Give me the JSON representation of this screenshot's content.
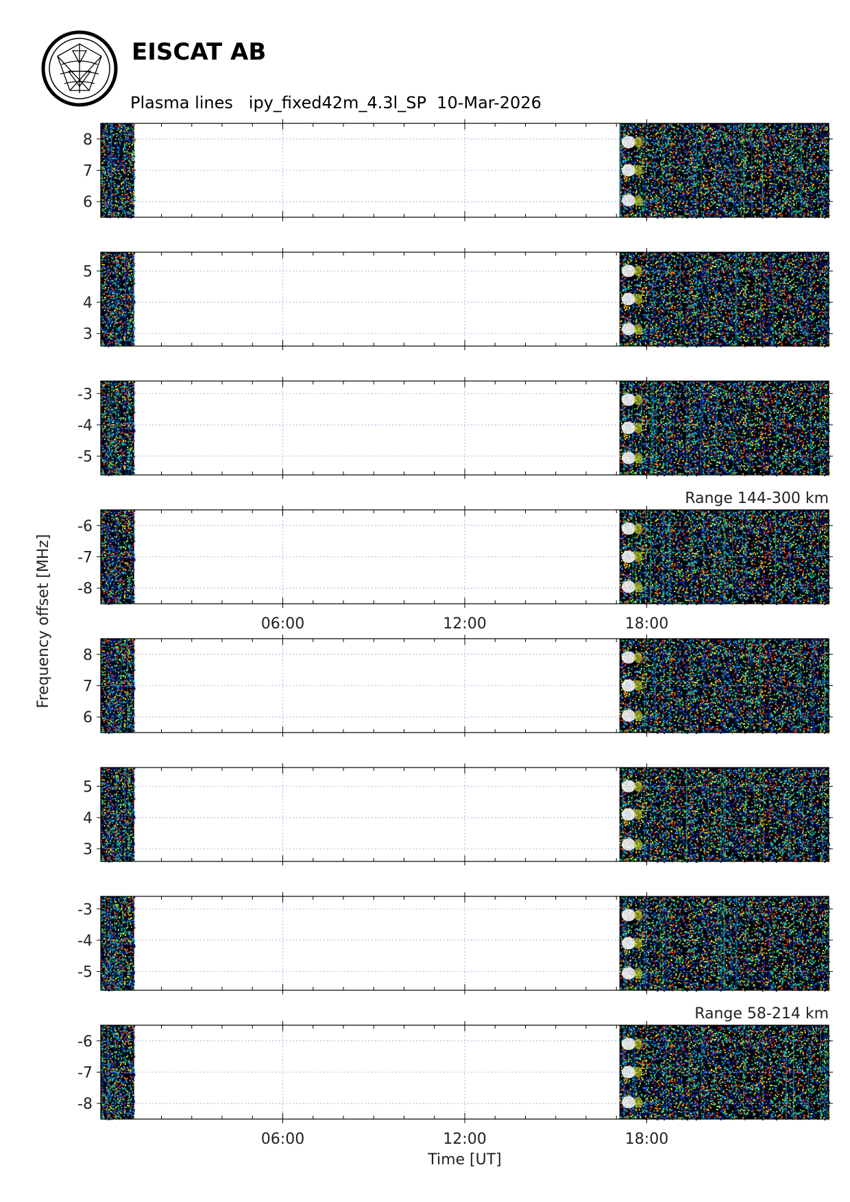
{
  "header": {
    "organization": "EISCAT AB",
    "plot_title": "Plasma lines   ipy_fixed42m_4.3l_SP  10-Mar-2026"
  },
  "colors": {
    "background": "#000000",
    "colormap": [
      "#000000",
      "#08106e",
      "#0a3fd6",
      "#0fb4d8",
      "#22c86a",
      "#d8e020",
      "#ff3a10",
      "#ffffff"
    ],
    "gridline": "#9aa4d8"
  },
  "chart_data": {
    "type": "heatmap",
    "ylabel": "Frequency offset [MHz]",
    "xlabel": "Time [UT]",
    "x_ticks": [
      "06:00",
      "12:00",
      "18:00"
    ],
    "x_range_hours": [
      0,
      24
    ],
    "data_coverage_hours": [
      [
        0,
        1.1
      ],
      [
        17.1,
        24
      ]
    ],
    "range_labels": [
      "Range 144-300 km",
      "Range 58-214 km"
    ],
    "panels": [
      {
        "group": "Range 144-300 km",
        "ylim": [
          5.5,
          8.5
        ],
        "y_ticks": [
          "8",
          "7",
          "6"
        ],
        "y_values": [
          8,
          7,
          6
        ]
      },
      {
        "group": "Range 144-300 km",
        "ylim": [
          2.6,
          5.6
        ],
        "y_ticks": [
          "5",
          "4",
          "3"
        ],
        "y_values": [
          5,
          4,
          3
        ]
      },
      {
        "group": "Range 144-300 km",
        "ylim": [
          -5.6,
          -2.6
        ],
        "y_ticks": [
          "-3",
          "-4",
          "-5"
        ],
        "y_values": [
          -3,
          -4,
          -5
        ]
      },
      {
        "group": "Range 144-300 km",
        "ylim": [
          -8.5,
          -5.5
        ],
        "y_ticks": [
          "-6",
          "-7",
          "-8"
        ],
        "y_values": [
          -6,
          -7,
          -8
        ]
      },
      {
        "group": "Range 58-214 km",
        "ylim": [
          5.5,
          8.5
        ],
        "y_ticks": [
          "8",
          "7",
          "6"
        ],
        "y_values": [
          8,
          7,
          6
        ]
      },
      {
        "group": "Range 58-214 km",
        "ylim": [
          2.6,
          5.6
        ],
        "y_ticks": [
          "5",
          "4",
          "3"
        ],
        "y_values": [
          5,
          4,
          3
        ]
      },
      {
        "group": "Range 58-214 km",
        "ylim": [
          -5.6,
          -2.6
        ],
        "y_ticks": [
          "-3",
          "-4",
          "-5"
        ],
        "y_values": [
          -3,
          -4,
          -5
        ]
      },
      {
        "group": "Range 58-214 km",
        "ylim": [
          -8.5,
          -5.5
        ],
        "y_ticks": [
          "-6",
          "-7",
          "-8"
        ],
        "y_values": [
          -6,
          -7,
          -8
        ]
      }
    ]
  }
}
